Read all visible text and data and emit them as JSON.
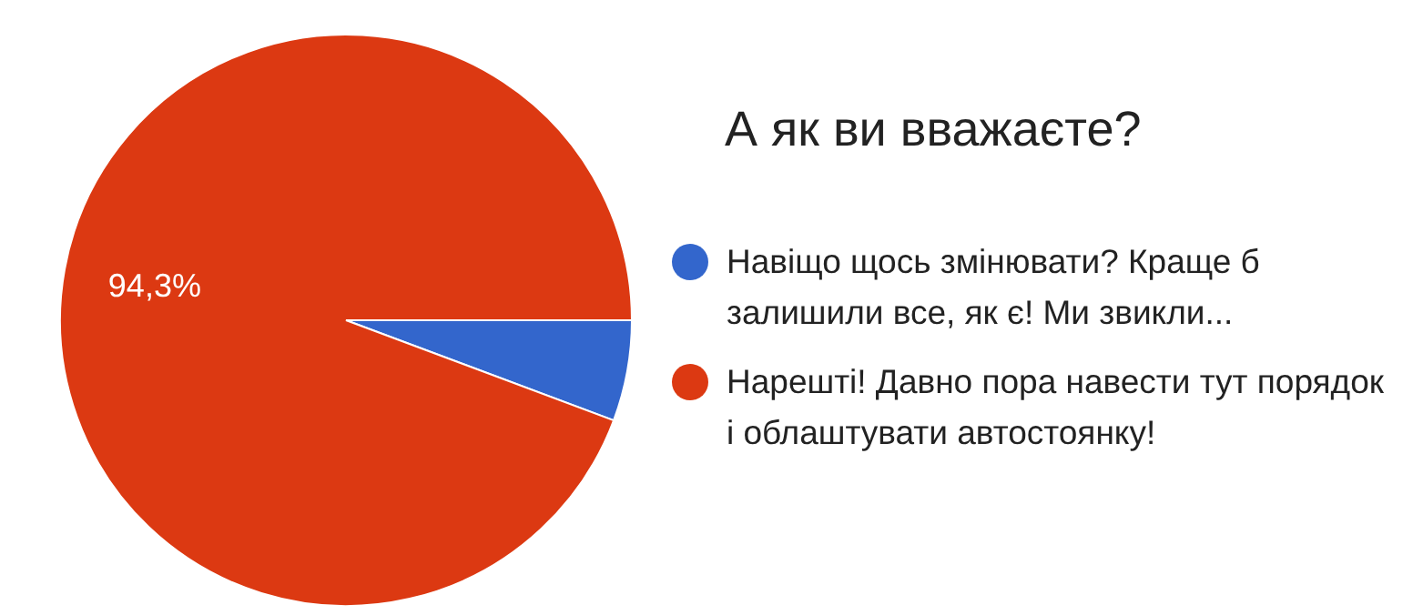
{
  "chart_data": {
    "type": "pie",
    "title": "А як ви вважаєте?",
    "categories": [
      "Навіщо щось змінювати? Краще б залишили все, як є! Ми звикли...",
      "Нарешті! Давно пора навести тут порядок і облаштувати автостоянку!"
    ],
    "values": [
      5.7,
      94.3
    ],
    "colors": [
      "#3366cc",
      "#dc3912"
    ],
    "value_labels": [
      null,
      "94,3%"
    ],
    "legend": "right"
  }
}
